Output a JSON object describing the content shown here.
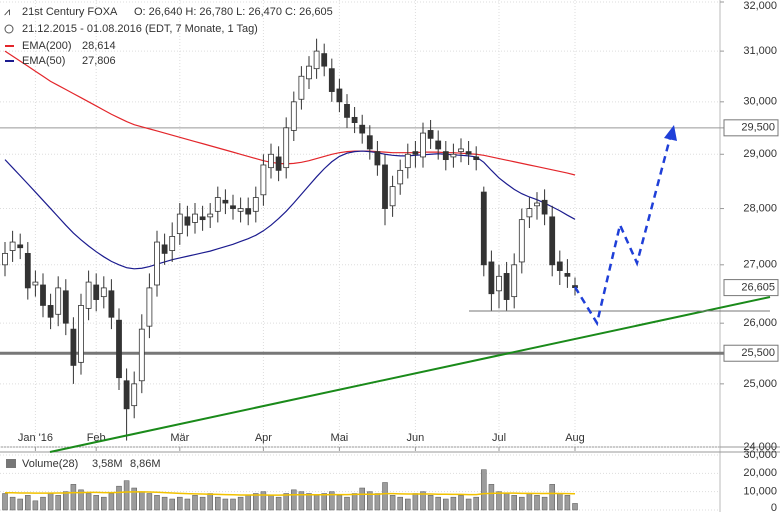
{
  "header": {
    "title": "21st Century FOXA",
    "ohlc": "O: 26,640  H: 26,780  L: 26,470  C: 26,605",
    "range": "21.12.2015 - 01.08.2016 (EDT, 7 Monate, 1 Tag)"
  },
  "chart_data": [
    {
      "type": "candlestick",
      "categories": [
        null,
        null,
        null,
        null,
        "Jan '16",
        null,
        null,
        null,
        null,
        null,
        null,
        null,
        "Feb",
        null,
        null,
        null,
        null,
        null,
        null,
        null,
        null,
        null,
        null,
        "Mär",
        null,
        null,
        null,
        null,
        null,
        null,
        null,
        null,
        null,
        null,
        "Apr",
        null,
        null,
        null,
        null,
        null,
        null,
        null,
        null,
        null,
        "Mai",
        null,
        null,
        null,
        null,
        null,
        null,
        null,
        null,
        null,
        "Jun",
        null,
        null,
        null,
        null,
        null,
        null,
        null,
        null,
        null,
        null,
        "Jul",
        null,
        null,
        null,
        null,
        null,
        null,
        null,
        null,
        null,
        "Aug"
      ],
      "open": [
        27000,
        27250,
        27350,
        27200,
        26650,
        26650,
        26300,
        26150,
        26550,
        25900,
        25350,
        26250,
        26650,
        26450,
        26550,
        26050,
        25050,
        24650,
        25050,
        25950,
        26650,
        27350,
        27250,
        27550,
        27850,
        27750,
        27850,
        27850,
        27950,
        28150,
        28050,
        27950,
        28000,
        27950,
        28250,
        28750,
        28950,
        28750,
        29450,
        30050,
        30450,
        30650,
        30950,
        30650,
        30250,
        29950,
        29700,
        29550,
        29350,
        29050,
        28800,
        28050,
        28450,
        28750,
        29050,
        28950,
        29450,
        29250,
        29050,
        28950,
        29050,
        29050,
        28950,
        28300,
        27050,
        26550,
        26850,
        26450,
        27050,
        27850,
        28050,
        28150,
        27850,
        27050,
        26850,
        26640
      ],
      "high": [
        27400,
        27600,
        27550,
        27400,
        26900,
        26850,
        26500,
        26800,
        26750,
        26100,
        26500,
        26900,
        26850,
        26800,
        26750,
        26250,
        25250,
        25200,
        26150,
        26850,
        27600,
        27550,
        27750,
        28100,
        28050,
        28100,
        28050,
        28100,
        28400,
        28350,
        28250,
        28200,
        28200,
        28400,
        29000,
        29200,
        29150,
        29700,
        30200,
        30700,
        30900,
        31250,
        31150,
        30850,
        30450,
        30150,
        29900,
        29750,
        29550,
        29250,
        29000,
        28600,
        28900,
        29200,
        29250,
        29600,
        29650,
        29450,
        29250,
        29200,
        29300,
        29250,
        29150,
        28400,
        27250,
        27000,
        27050,
        27200,
        28000,
        28200,
        28300,
        28350,
        28050,
        27250,
        27100,
        26780
      ],
      "low": [
        26800,
        27050,
        27100,
        26400,
        26450,
        26100,
        25900,
        25950,
        25800,
        25000,
        25150,
        26050,
        26200,
        26250,
        25900,
        24900,
        24100,
        24450,
        24850,
        25750,
        26450,
        27000,
        27050,
        27350,
        27500,
        27550,
        27600,
        27650,
        27750,
        27900,
        27800,
        27750,
        27700,
        27750,
        28050,
        28550,
        28500,
        28550,
        29250,
        29850,
        30250,
        30450,
        30500,
        30000,
        29800,
        29500,
        29400,
        29200,
        28900,
        28600,
        27700,
        27850,
        28250,
        28550,
        28750,
        28750,
        29100,
        28900,
        28700,
        28750,
        28850,
        28800,
        28700,
        26800,
        26200,
        26250,
        26200,
        26250,
        26850,
        27650,
        27800,
        27700,
        26800,
        26650,
        26600,
        26470
      ],
      "close": [
        27200,
        27400,
        27300,
        26600,
        26700,
        26300,
        26100,
        26600,
        26000,
        25300,
        26300,
        26700,
        26400,
        26600,
        26100,
        25100,
        24600,
        25000,
        25900,
        26600,
        27400,
        27200,
        27500,
        27900,
        27700,
        27900,
        27800,
        27900,
        28200,
        28100,
        28000,
        28000,
        27900,
        28200,
        28800,
        29000,
        28700,
        29500,
        30000,
        30500,
        30700,
        31000,
        30700,
        30200,
        30000,
        29700,
        29600,
        29400,
        29100,
        28800,
        28000,
        28400,
        28700,
        29000,
        29000,
        29400,
        29300,
        29100,
        28900,
        29000,
        29100,
        29000,
        28900,
        27000,
        26500,
        26800,
        26400,
        27000,
        27800,
        28000,
        28100,
        27900,
        27000,
        26900,
        26800,
        26605
      ],
      "up_color": "#ffffff",
      "down_color": "#333333",
      "series": [
        {
          "name": "EMA(200)",
          "color": "#e3262b",
          "last_label": "28,614",
          "values": [
            31000,
            30900,
            30800,
            30700,
            30600,
            30500,
            30400,
            30320,
            30240,
            30160,
            30080,
            30000,
            29920,
            29840,
            29760,
            29690,
            29620,
            29560,
            29520,
            29480,
            29440,
            29400,
            29360,
            29320,
            29280,
            29240,
            29200,
            29160,
            29120,
            29080,
            29040,
            29000,
            28960,
            28920,
            28880,
            28850,
            28830,
            28820,
            28830,
            28850,
            28880,
            28920,
            28960,
            29000,
            29030,
            29050,
            29060,
            29060,
            29060,
            29050,
            29040,
            29030,
            29030,
            29030,
            29030,
            29040,
            29040,
            29040,
            29030,
            29030,
            29020,
            29010,
            29000,
            28980,
            28950,
            28920,
            28890,
            28860,
            28830,
            28800,
            28770,
            28740,
            28710,
            28680,
            28650,
            28614
          ]
        },
        {
          "name": "EMA(50)",
          "color": "#1c1c8f",
          "last_label": "27,806",
          "values": [
            28900,
            28750,
            28600,
            28450,
            28300,
            28150,
            28000,
            27850,
            27700,
            27560,
            27440,
            27330,
            27230,
            27140,
            27060,
            27000,
            26950,
            26930,
            26940,
            26970,
            27010,
            27050,
            27090,
            27120,
            27150,
            27180,
            27210,
            27240,
            27280,
            27320,
            27360,
            27410,
            27460,
            27520,
            27600,
            27700,
            27820,
            27950,
            28100,
            28260,
            28420,
            28580,
            28730,
            28860,
            28960,
            29020,
            29050,
            29060,
            29050,
            29030,
            29000,
            28980,
            28970,
            28970,
            28980,
            28990,
            29000,
            29010,
            29000,
            28990,
            28980,
            28970,
            28950,
            28850,
            28700,
            28560,
            28450,
            28350,
            28270,
            28210,
            28160,
            28100,
            28030,
            27960,
            27880,
            27806
          ]
        }
      ],
      "levels": [
        {
          "value": 29500,
          "label": "29,500",
          "style": "thin"
        },
        {
          "value": 25500,
          "label": "25,500",
          "style": "thick"
        },
        {
          "value": 26605,
          "label": "26,605",
          "style": "none"
        }
      ],
      "log_scale": true,
      "grid": true,
      "ylim": [
        24000,
        32000
      ],
      "yticks": [
        {
          "value": 24000,
          "label": "24,000"
        },
        {
          "value": 25000,
          "label": "25,000"
        },
        {
          "value": 26000,
          "label": "26,000"
        },
        {
          "value": 27000,
          "label": "27,000"
        },
        {
          "value": 28000,
          "label": "28,000"
        },
        {
          "value": 29000,
          "label": "29,000"
        },
        {
          "value": 30000,
          "label": "30,000"
        },
        {
          "value": 31000,
          "label": "31,000"
        },
        {
          "value": 32000,
          "label": "32,000"
        }
      ]
    },
    {
      "type": "bar",
      "title": "Volume(28)",
      "color": "#9c9c9c",
      "values": [
        9000,
        7000,
        6000,
        8000,
        5000,
        7000,
        9000,
        8000,
        10000,
        14000,
        11000,
        9000,
        8000,
        7000,
        9000,
        13000,
        16000,
        12000,
        10000,
        9000,
        8000,
        7000,
        6000,
        7000,
        6000,
        8000,
        7000,
        9000,
        7000,
        6000,
        6000,
        7000,
        8000,
        9000,
        10000,
        8000,
        7000,
        9000,
        11000,
        10000,
        9000,
        8000,
        9000,
        10000,
        8000,
        7000,
        9000,
        12000,
        10000,
        9000,
        15000,
        8000,
        7000,
        6000,
        9000,
        10000,
        8000,
        7000,
        6000,
        7000,
        8000,
        6000,
        7000,
        22000,
        14000,
        10000,
        9000,
        8000,
        7000,
        9000,
        8000,
        7000,
        14000,
        9000,
        8000,
        3580
      ],
      "last_label": "3,58M",
      "average": {
        "color": "#f2c200",
        "last_label": "8,86M",
        "values": [
          9400,
          9400,
          9300,
          9300,
          9200,
          9200,
          9200,
          9300,
          9300,
          9500,
          9500,
          9600,
          9600,
          9500,
          9500,
          9600,
          9800,
          9900,
          9900,
          9800,
          9700,
          9500,
          9300,
          9100,
          8900,
          8800,
          8700,
          8600,
          8500,
          8400,
          8300,
          8200,
          8200,
          8200,
          8200,
          8100,
          8100,
          8200,
          8300,
          8300,
          8300,
          8300,
          8300,
          8400,
          8400,
          8400,
          8500,
          8600,
          8600,
          8600,
          8900,
          8900,
          8800,
          8700,
          8700,
          8700,
          8700,
          8600,
          8600,
          8500,
          8500,
          8400,
          8400,
          8900,
          9100,
          9200,
          9200,
          9200,
          9100,
          9100,
          9000,
          9000,
          9100,
          9000,
          8900,
          8860
        ]
      },
      "ylim": [
        0,
        30000
      ],
      "yticks": [
        0,
        {
          "value": 10000,
          "label": "10,000"
        },
        {
          "value": 20000,
          "label": "20,000"
        },
        {
          "value": 30000,
          "label": "30,000"
        }
      ]
    }
  ]
}
